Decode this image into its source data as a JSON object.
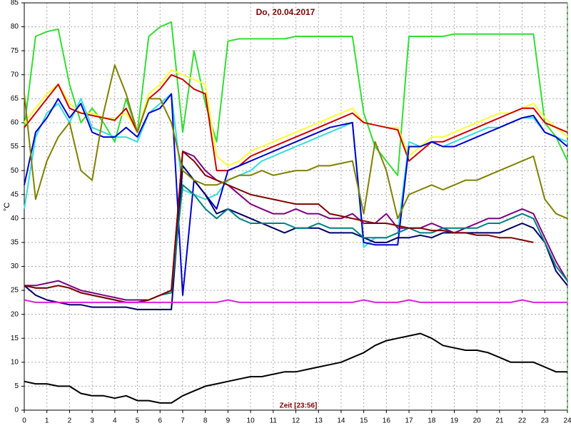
{
  "chart_data": {
    "type": "line",
    "title": "Do, 20.04.2017",
    "xlabel": "Zeit [23:56]",
    "ylabel": "°C",
    "x": [
      0,
      0.5,
      1,
      1.5,
      2,
      2.5,
      3,
      3.5,
      4,
      4.5,
      5,
      5.5,
      6,
      6.5,
      7,
      7.5,
      8,
      8.5,
      9,
      9.5,
      10,
      10.5,
      11,
      11.5,
      12,
      12.5,
      13,
      13.5,
      14,
      14.5,
      15,
      15.5,
      16,
      16.5,
      17,
      17.5,
      18,
      18.5,
      19,
      19.5,
      20,
      20.5,
      21,
      21.5,
      22,
      22.5,
      23,
      23.5,
      24
    ],
    "xlim": [
      0,
      24
    ],
    "xticks": [
      0,
      1,
      2,
      3,
      4,
      5,
      6,
      7,
      8,
      9,
      10,
      11,
      12,
      13,
      14,
      15,
      16,
      17,
      18,
      19,
      20,
      21,
      22,
      23,
      24
    ],
    "ylim": [
      0,
      85
    ],
    "yticks": [
      0,
      5,
      10,
      15,
      20,
      25,
      30,
      35,
      40,
      45,
      50,
      55,
      60,
      65,
      70,
      75,
      80,
      85
    ],
    "grid": true,
    "series": [
      {
        "color": "#33dd33",
        "values": [
          59,
          78,
          79,
          79.5,
          68,
          60,
          63,
          60,
          56,
          65,
          58,
          78,
          80,
          81,
          58,
          75,
          64,
          56,
          77,
          77.5,
          77.5,
          77.5,
          77.5,
          77.5,
          78,
          78,
          78,
          78,
          78,
          78,
          62,
          55,
          52,
          49,
          78,
          78,
          78,
          78,
          78.5,
          78.5,
          78.5,
          78.5,
          78.5,
          78.5,
          78.5,
          78.5,
          60,
          57,
          52
        ]
      },
      {
        "color": "#ffff33",
        "values": [
          60,
          63,
          66,
          68,
          64,
          62,
          62,
          61,
          61,
          62,
          58,
          66,
          68,
          71,
          70,
          69,
          68,
          53,
          51,
          52,
          54,
          55,
          56,
          57,
          58,
          59,
          60,
          61,
          62,
          63,
          60,
          59.5,
          59,
          59,
          53,
          55,
          57,
          57,
          58,
          59,
          60,
          61,
          62,
          62,
          63,
          64,
          61,
          59,
          57
        ]
      },
      {
        "color": "#cc0000",
        "values": [
          59,
          62,
          65,
          68,
          63,
          62,
          61.5,
          61,
          60.5,
          63,
          58,
          65,
          67,
          70,
          69,
          67,
          66,
          50,
          50,
          51,
          53,
          54,
          55,
          56,
          57,
          58,
          59,
          60,
          61,
          62,
          60,
          59.5,
          59,
          58.5,
          52,
          54,
          56,
          56,
          57,
          58,
          59,
          60,
          61,
          62,
          63,
          63,
          60,
          59,
          58
        ]
      },
      {
        "color": "#33dddd",
        "values": [
          42,
          57,
          62,
          64,
          60,
          65,
          59,
          58,
          57,
          57,
          56,
          62,
          64,
          66,
          46,
          45,
          44,
          45,
          48,
          49,
          50,
          52,
          53,
          54,
          55,
          56,
          57,
          58,
          59,
          60,
          34,
          36,
          36,
          37,
          56,
          55,
          56,
          55,
          56,
          57,
          58,
          59,
          59,
          60,
          61,
          61,
          58,
          57,
          56
        ]
      },
      {
        "color": "#0000cc",
        "values": [
          47,
          58,
          61,
          65,
          61,
          64,
          58,
          57,
          57,
          59,
          57,
          62,
          63,
          66,
          24,
          48,
          45,
          42,
          50,
          51,
          52,
          53,
          54,
          55,
          56,
          57,
          58,
          59,
          59.5,
          60,
          35,
          34.5,
          34.5,
          34.5,
          55,
          55,
          56,
          55,
          55,
          56,
          57,
          58,
          59,
          60,
          61,
          61.5,
          58,
          57,
          55
        ]
      },
      {
        "color": "#000066",
        "values": [
          26,
          24,
          23,
          22.5,
          22,
          22,
          21.5,
          21.5,
          21.5,
          21.5,
          21,
          21,
          21,
          21,
          51,
          48,
          45,
          41,
          42,
          41,
          40,
          39,
          38,
          37,
          38,
          38,
          38,
          37,
          37,
          37,
          36,
          35,
          35,
          36,
          36,
          36.5,
          36,
          37,
          37,
          37,
          37,
          37,
          37,
          38,
          39,
          38,
          35,
          29,
          26
        ]
      },
      {
        "color": "#800080",
        "values": [
          26,
          26,
          26.5,
          27,
          26,
          25,
          24.5,
          24,
          23.5,
          23,
          23,
          23,
          24,
          25,
          54,
          53,
          50,
          48,
          47,
          45,
          43,
          42,
          41,
          41,
          42,
          41,
          41,
          40,
          40,
          41,
          39,
          39,
          41,
          38,
          38,
          38,
          39,
          38,
          37,
          38,
          39,
          40,
          40,
          41,
          42,
          41,
          36,
          31,
          27
        ]
      },
      {
        "color": "#008080",
        "values": [
          26,
          25.5,
          25.5,
          26,
          25.5,
          24.5,
          24,
          23.5,
          23,
          22.5,
          22.5,
          23,
          24,
          24.5,
          47,
          45,
          42,
          40,
          42,
          40,
          39,
          39,
          39,
          39,
          38,
          38,
          39,
          38,
          38,
          38,
          36,
          36,
          36,
          37,
          38,
          37,
          37,
          38,
          38,
          38,
          38,
          39,
          39,
          40,
          41,
          40,
          35,
          30,
          27
        ]
      },
      {
        "color": "#800000",
        "values": [
          26,
          25.5,
          25.5,
          26,
          25.5,
          24.5,
          24,
          23.5,
          23,
          22.5,
          22.5,
          23,
          24,
          25,
          54,
          52,
          49,
          48,
          47,
          46,
          45,
          44.5,
          44,
          43.5,
          43,
          43,
          43,
          41,
          40.5,
          40,
          39.5,
          39,
          39,
          38.5,
          38,
          38,
          37.5,
          37.5,
          37,
          37,
          36.5,
          36.5,
          36,
          36,
          35.5,
          35,
          null,
          null,
          null
        ]
      },
      {
        "color": "#808000",
        "values": [
          66,
          44,
          52,
          57,
          60,
          50,
          48,
          62,
          72,
          66,
          58,
          65,
          65,
          60,
          50,
          48,
          47,
          47,
          48,
          49,
          49,
          50,
          49,
          49.5,
          50,
          50,
          51,
          51,
          51.5,
          52,
          41,
          56,
          50,
          40,
          45,
          46,
          47,
          46,
          47,
          48,
          48,
          49,
          50,
          51,
          52,
          53,
          44,
          41,
          40
        ]
      },
      {
        "color": "#e020e0",
        "values": [
          23,
          22.5,
          22.5,
          22.5,
          22.5,
          22.5,
          22.5,
          22.5,
          22.5,
          22.5,
          22.5,
          22.5,
          22.5,
          22.5,
          22.5,
          22.5,
          22.5,
          22.5,
          23,
          22.5,
          22.5,
          22.5,
          22.5,
          22.5,
          22.5,
          22.5,
          22.5,
          22.5,
          22.5,
          22.5,
          23,
          22.5,
          22.5,
          22.5,
          23,
          22.5,
          22.5,
          22.5,
          22.5,
          22.5,
          22.5,
          22.5,
          22.5,
          22.5,
          23,
          22.5,
          22.5,
          22.5,
          22.5
        ]
      },
      {
        "color": "#000000",
        "values": [
          6,
          5.5,
          5.5,
          5,
          5,
          3.5,
          3,
          3,
          2.5,
          3,
          2,
          2,
          1.5,
          1.5,
          3,
          4,
          5,
          5.5,
          6,
          6.5,
          7,
          7,
          7.5,
          8,
          8,
          8.5,
          9,
          9.5,
          10,
          11,
          12,
          13.5,
          14.5,
          15,
          15.5,
          16,
          15,
          13.5,
          13,
          12.5,
          12.5,
          12,
          11,
          10,
          10,
          10,
          9,
          8,
          8
        ]
      }
    ]
  }
}
